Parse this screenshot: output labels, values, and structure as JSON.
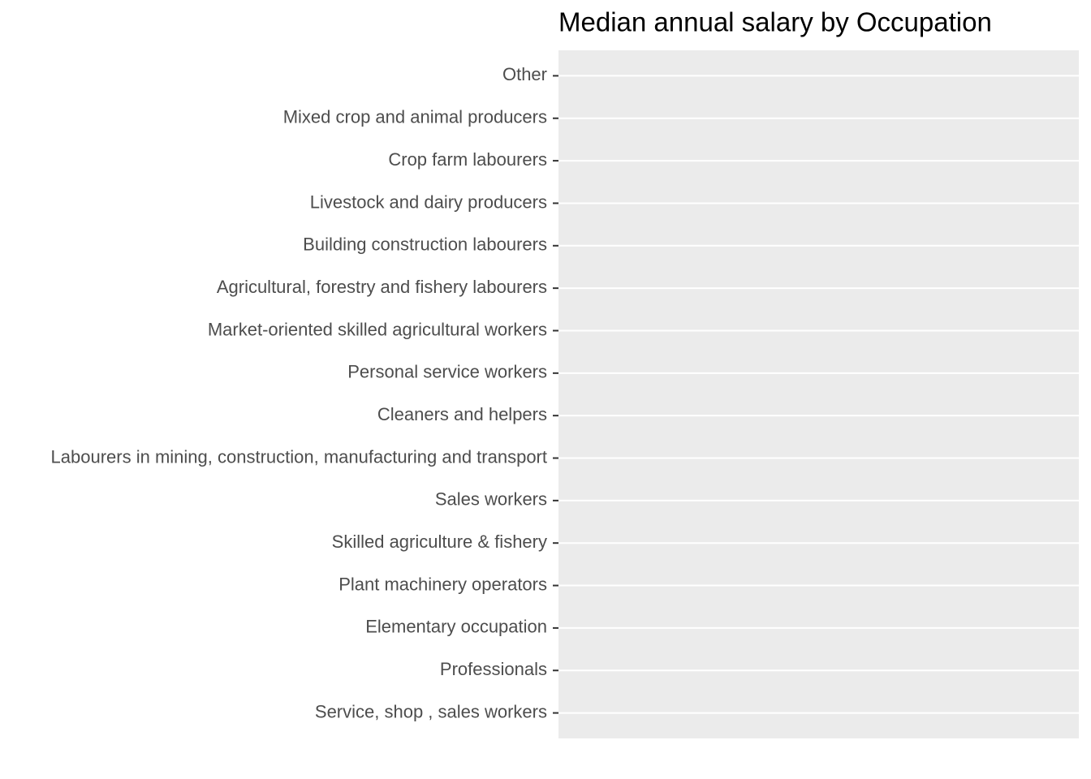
{
  "chart_data": {
    "type": "bar",
    "orientation": "horizontal",
    "title": "Median annual salary by Occupation",
    "categories": [
      "Other",
      "Mixed crop and animal producers",
      "Crop farm labourers",
      "Livestock and dairy producers",
      "Building construction labourers",
      "Agricultural, forestry and fishery labourers",
      "Market-oriented skilled agricultural workers",
      "Personal service workers",
      "Cleaners and helpers",
      "Labourers in mining, construction, manufacturing and transport",
      "Sales workers",
      "Skilled agriculture & fishery",
      "Plant machinery operators",
      "Elementary occupation",
      "Professionals",
      "Service, shop , sales workers"
    ],
    "grid": true
  }
}
